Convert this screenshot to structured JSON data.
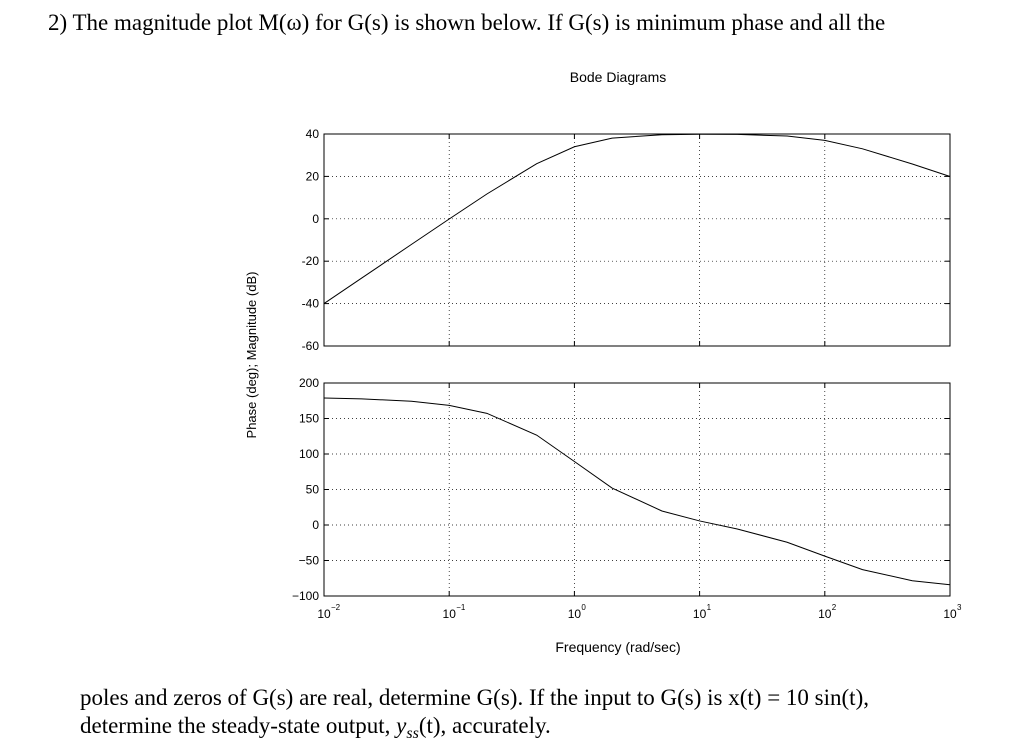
{
  "question": {
    "line1": "2) The magnitude plot M(ω) for G(s) is shown below. If G(s) is minimum phase and all the",
    "line2": "poles and zeros of G(s) are real, determine G(s). If the input to G(s) is x(t) = 10 sin(t),",
    "line3": [
      "determine the steady-state output, ",
      "y",
      "ss",
      "(t), accurately."
    ]
  },
  "chart_data": [
    {
      "type": "line",
      "title": "Bode Diagrams",
      "ylabel": "Phase (deg); Magnitude (dB)",
      "xscale": "log",
      "grid": true,
      "xlim": [
        0.01,
        1000
      ],
      "xticks": [
        0.01,
        0.1,
        1,
        10,
        100,
        1000
      ],
      "ylim": [
        -60,
        40
      ],
      "yticks": [
        -60,
        -40,
        -20,
        0,
        20,
        40
      ],
      "x": [
        0.01,
        0.02,
        0.05,
        0.1,
        0.2,
        0.5,
        1,
        2,
        5,
        10,
        20,
        50,
        100,
        200,
        500,
        1000
      ],
      "series": [
        {
          "color": "#000000",
          "values": [
            -40.0,
            -27.96,
            -12.06,
            -0.09,
            11.7,
            26.02,
            33.98,
            38.06,
            39.65,
            39.87,
            39.81,
            39.03,
            36.99,
            33.01,
            25.85,
            19.96
          ]
        }
      ]
    },
    {
      "type": "line",
      "xlabel": "Frequency (rad/sec)",
      "xscale": "log",
      "grid": true,
      "xlim": [
        0.01,
        1000
      ],
      "xticks": [
        {
          "value": 0.01,
          "label": "10",
          "exponent": "−2"
        },
        {
          "value": 0.1,
          "label": "10",
          "exponent": "−1"
        },
        {
          "value": 1,
          "label": "10",
          "exponent": "0"
        },
        {
          "value": 10,
          "label": "10",
          "exponent": "1"
        },
        {
          "value": 100,
          "label": "10",
          "exponent": "2"
        },
        {
          "value": 1000,
          "label": "10",
          "exponent": "3"
        }
      ],
      "ylim": [
        -100,
        200
      ],
      "yticks": [
        {
          "value": -100,
          "label": "−100"
        },
        {
          "value": -50,
          "label": "−50"
        },
        0,
        50,
        100,
        150,
        200
      ],
      "x": [
        0.01,
        0.02,
        0.05,
        0.1,
        0.2,
        0.5,
        1,
        2,
        5,
        10,
        20,
        50,
        100,
        200,
        500,
        1000
      ],
      "series": [
        {
          "color": "#000000",
          "values": [
            178.85,
            177.7,
            174.25,
            168.52,
            157.27,
            126.58,
            89.43,
            51.98,
            19.76,
            5.71,
            -5.59,
            -24.28,
            -43.85,
            -62.86,
            -78.46,
            -84.18
          ]
        }
      ]
    }
  ]
}
